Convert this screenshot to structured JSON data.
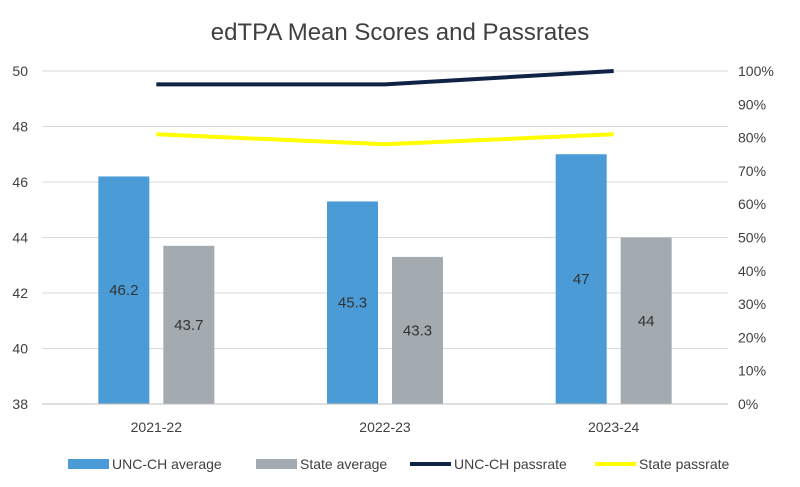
{
  "chart_data": {
    "type": "bar",
    "title": "edTPA Mean Scores and Passrates",
    "categories": [
      "2021-22",
      "2022-23",
      "2023-24"
    ],
    "series": [
      {
        "name": "UNC-CH average",
        "kind": "bar",
        "axis": "left",
        "color": "#4a9bd6",
        "values": [
          46.2,
          45.3,
          47
        ],
        "labels": [
          "46.2",
          "45.3",
          "47"
        ]
      },
      {
        "name": "State average",
        "kind": "bar",
        "axis": "left",
        "color": "#a3aab0",
        "values": [
          43.7,
          43.3,
          44
        ],
        "labels": [
          "43.7",
          "43.3",
          "44"
        ]
      },
      {
        "name": "UNC-CH passrate",
        "kind": "line",
        "axis": "right",
        "color": "#0f2444",
        "values": [
          96,
          96,
          100
        ]
      },
      {
        "name": "State passrate",
        "kind": "line",
        "axis": "right",
        "color": "#ffff00",
        "values": [
          81,
          78,
          81
        ]
      }
    ],
    "y_left": {
      "min": 38,
      "max": 50,
      "ticks": [
        "38",
        "40",
        "42",
        "44",
        "46",
        "48",
        "50"
      ]
    },
    "y_right": {
      "min": 0,
      "max": 100,
      "ticks": [
        "0%",
        "10%",
        "20%",
        "30%",
        "40%",
        "50%",
        "60%",
        "70%",
        "80%",
        "90%",
        "100%"
      ]
    },
    "grid": true,
    "legend_position": "bottom"
  }
}
